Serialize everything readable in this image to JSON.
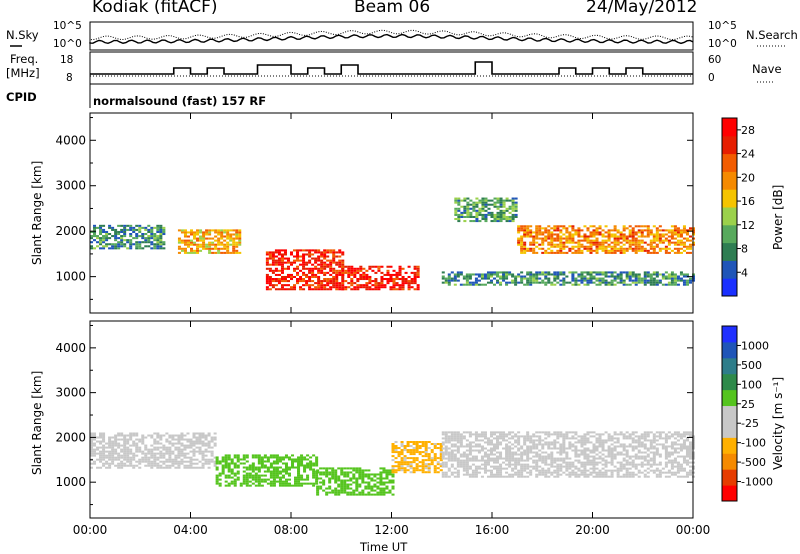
{
  "header": {
    "station": "Kodiak (fitACF)",
    "beam": "Beam 06",
    "date": "24/May/2012"
  },
  "noise_panel": {
    "left_label": "N.Sky",
    "right_label": "N.Search",
    "ticks_left": [
      "10^5",
      "10^0"
    ],
    "ticks_right": [
      "10^5",
      "10^0"
    ]
  },
  "freq_panel": {
    "left_label_1": "Freq.",
    "left_label_2": "[MHz]",
    "right_label": "Nave",
    "ticks_left": [
      "18",
      "8"
    ],
    "ticks_right": [
      "60",
      "0"
    ]
  },
  "cpid": {
    "label": "CPID",
    "value": "normalsound (fast) 157 RF"
  },
  "colors": {
    "power": [
      "#1a30ff",
      "#1f55b8",
      "#2e7d52",
      "#57a95c",
      "#9bd14b",
      "#f5c400",
      "#f58a00",
      "#f25c00",
      "#e61e00",
      "#ff0000"
    ],
    "velocity": [
      "#ff0000",
      "#e63c00",
      "#f58a00",
      "#ffb000",
      "#c8c8c8",
      "#c8c8c8",
      "#55c41e",
      "#2e8a4a",
      "#2e7d8a",
      "#1f55b8",
      "#2030ff"
    ]
  },
  "chart_data": [
    {
      "type": "heatmap",
      "title": "",
      "xlabel": "Time UT",
      "ylabel": "Slant Range [km]",
      "x_ticks": [
        "00:00",
        "04:00",
        "08:00",
        "12:00",
        "16:00",
        "20:00",
        "00:00"
      ],
      "y_ticks": [
        "1000",
        "2000",
        "3000",
        "4000"
      ],
      "xlim": [
        0,
        24
      ],
      "ylim": [
        200,
        4600
      ],
      "colorbar": {
        "label": "Power [dB]",
        "ticks": [
          "4",
          "8",
          "12",
          "16",
          "20",
          "24",
          "28"
        ],
        "range": [
          0,
          30
        ]
      },
      "bands": [
        {
          "t": [
            0,
            3
          ],
          "range_km": [
            1600,
            2100
          ],
          "value_db": 8
        },
        {
          "t": [
            3.5,
            6
          ],
          "range_km": [
            1500,
            2000
          ],
          "value_db": 18
        },
        {
          "t": [
            7,
            10
          ],
          "range_km": [
            700,
            1600
          ],
          "value_db": 26
        },
        {
          "t": [
            10,
            13
          ],
          "range_km": [
            700,
            1200
          ],
          "value_db": 27
        },
        {
          "t": [
            14.5,
            17
          ],
          "range_km": [
            2200,
            2700
          ],
          "value_db": 10
        },
        {
          "t": [
            17,
            24
          ],
          "range_km": [
            1500,
            2100
          ],
          "value_db": 20
        },
        {
          "t": [
            14,
            24
          ],
          "range_km": [
            800,
            1100
          ],
          "value_db": 8
        }
      ]
    },
    {
      "type": "heatmap",
      "title": "",
      "xlabel": "Time UT",
      "ylabel": "Slant Range [km]",
      "x_ticks": [
        "00:00",
        "04:00",
        "08:00",
        "12:00",
        "16:00",
        "20:00",
        "00:00"
      ],
      "y_ticks": [
        "1000",
        "2000",
        "3000",
        "4000"
      ],
      "xlim": [
        0,
        24
      ],
      "ylim": [
        200,
        4600
      ],
      "colorbar": {
        "label": "Velocity [m s⁻¹]",
        "ticks": [
          "1000",
          "500",
          "100",
          "25",
          "-25",
          "-100",
          "-500",
          "-1000"
        ],
        "range": [
          -1000,
          1000
        ]
      },
      "bands": [
        {
          "t": [
            0,
            5
          ],
          "range_km": [
            1300,
            2100
          ],
          "value_ms": 0
        },
        {
          "t": [
            5,
            9
          ],
          "range_km": [
            900,
            1600
          ],
          "value_ms": 150
        },
        {
          "t": [
            9,
            12
          ],
          "range_km": [
            700,
            1300
          ],
          "value_ms": 200
        },
        {
          "t": [
            12,
            14
          ],
          "range_km": [
            1200,
            1900
          ],
          "value_ms": -300
        },
        {
          "t": [
            14,
            24
          ],
          "range_km": [
            1100,
            2100
          ],
          "value_ms": 0
        }
      ]
    }
  ]
}
